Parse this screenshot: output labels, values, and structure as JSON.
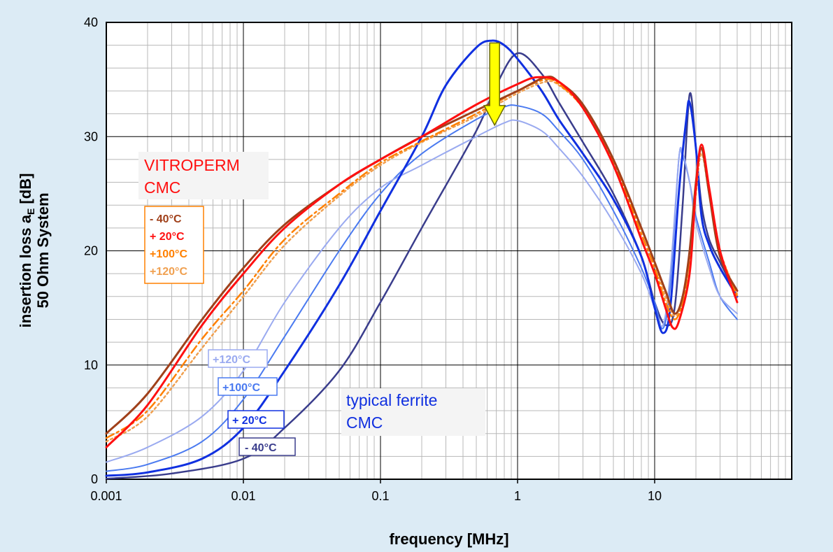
{
  "chart_data": {
    "type": "line",
    "xlabel": "frequency [MHz]",
    "ylabel_line1": "insertion loss  a",
    "ylabel_sub": "E",
    "ylabel_unit": " [dB]",
    "ylabel_line2": "50 Ohm System",
    "x_scale": "log",
    "xlim": [
      0.001,
      100
    ],
    "ylim": [
      0,
      40
    ],
    "x_ticks": [
      {
        "value": 0.001,
        "label": "0.001"
      },
      {
        "value": 0.01,
        "label": "0.01"
      },
      {
        "value": 0.1,
        "label": "0.1"
      },
      {
        "value": 1,
        "label": "1"
      },
      {
        "value": 10,
        "label": "10"
      }
    ],
    "y_ticks": [
      {
        "value": 0,
        "label": "0"
      },
      {
        "value": 10,
        "label": "10"
      },
      {
        "value": 20,
        "label": "20"
      },
      {
        "value": 30,
        "label": "30"
      },
      {
        "value": 40,
        "label": "40"
      }
    ],
    "grid": true,
    "colors": {
      "background": "#dcebf5",
      "plot_bg": "#ffffff",
      "vit_m40": "#a0401a",
      "vit_p20": "#ff1010",
      "vit_p100": "#ff8000",
      "vit_p120": "#f0a050",
      "fer_m40": "#3a3d8c",
      "fer_p20": "#1030e0",
      "fer_p100": "#4a7af0",
      "fer_p120": "#9aaaf0",
      "arrow": "#ffff00"
    },
    "series": [
      {
        "group": "VITROPERM CMC",
        "color_key": "vit_m40",
        "dash": "",
        "width": 3,
        "points": [
          [
            0.001,
            4.0
          ],
          [
            0.002,
            7.5
          ],
          [
            0.005,
            14.0
          ],
          [
            0.01,
            18.5
          ],
          [
            0.02,
            22.3
          ],
          [
            0.05,
            25.8
          ],
          [
            0.1,
            28.0
          ],
          [
            0.2,
            30.0
          ],
          [
            0.5,
            32.3
          ],
          [
            1,
            34.0
          ],
          [
            1.6,
            35.2
          ],
          [
            2,
            34.8
          ],
          [
            3,
            32.8
          ],
          [
            5,
            28.0
          ],
          [
            8,
            22.0
          ],
          [
            10,
            19.0
          ],
          [
            12,
            16.5
          ],
          [
            14,
            14.5
          ],
          [
            16,
            16.0
          ],
          [
            18,
            20.0
          ],
          [
            20,
            26.0
          ],
          [
            22,
            29.0
          ],
          [
            25,
            25.0
          ],
          [
            30,
            19.5
          ],
          [
            40,
            16.5
          ]
        ]
      },
      {
        "group": "VITROPERM CMC",
        "color_key": "vit_p20",
        "dash": "",
        "width": 3,
        "points": [
          [
            0.001,
            2.8
          ],
          [
            0.002,
            6.5
          ],
          [
            0.005,
            13.5
          ],
          [
            0.01,
            18.0
          ],
          [
            0.02,
            22.0
          ],
          [
            0.05,
            25.8
          ],
          [
            0.1,
            28.0
          ],
          [
            0.2,
            30.0
          ],
          [
            0.5,
            32.8
          ],
          [
            1,
            34.6
          ],
          [
            1.4,
            35.2
          ],
          [
            2,
            34.8
          ],
          [
            3,
            32.5
          ],
          [
            5,
            27.5
          ],
          [
            8,
            21.0
          ],
          [
            10,
            18.0
          ],
          [
            12,
            15.0
          ],
          [
            13.5,
            13.3
          ],
          [
            15,
            13.8
          ],
          [
            18,
            18.0
          ],
          [
            20,
            25.5
          ],
          [
            22,
            29.3
          ],
          [
            25,
            25.5
          ],
          [
            30,
            20.0
          ],
          [
            40,
            15.5
          ]
        ]
      },
      {
        "group": "VITROPERM CMC",
        "color_key": "vit_p100",
        "dash": "12,5,3,5",
        "width": 2.5,
        "points": [
          [
            0.001,
            3.6
          ],
          [
            0.002,
            6.0
          ],
          [
            0.005,
            12.3
          ],
          [
            0.01,
            16.5
          ],
          [
            0.02,
            21.0
          ],
          [
            0.05,
            25.0
          ],
          [
            0.1,
            27.7
          ],
          [
            0.2,
            29.6
          ],
          [
            0.5,
            32.0
          ],
          [
            1,
            34.0
          ],
          [
            1.6,
            35.0
          ],
          [
            2,
            34.6
          ],
          [
            3,
            32.5
          ],
          [
            5,
            27.8
          ],
          [
            8,
            21.5
          ],
          [
            10,
            18.5
          ],
          [
            12,
            15.5
          ],
          [
            14,
            14.0
          ],
          [
            16,
            15.5
          ],
          [
            18,
            19.5
          ],
          [
            20,
            25.5
          ],
          [
            22,
            29.0
          ],
          [
            25,
            25.0
          ],
          [
            30,
            20.0
          ],
          [
            40,
            16.0
          ]
        ]
      },
      {
        "group": "VITROPERM CMC",
        "color_key": "vit_p120",
        "dash": "3,4",
        "width": 2.5,
        "points": [
          [
            0.001,
            3.3
          ],
          [
            0.002,
            5.5
          ],
          [
            0.005,
            11.5
          ],
          [
            0.01,
            16.0
          ],
          [
            0.02,
            20.5
          ],
          [
            0.05,
            24.8
          ],
          [
            0.1,
            27.5
          ],
          [
            0.2,
            29.5
          ],
          [
            0.5,
            31.8
          ],
          [
            1,
            33.8
          ],
          [
            1.6,
            34.8
          ],
          [
            2,
            34.5
          ],
          [
            3,
            32.5
          ],
          [
            5,
            28.0
          ],
          [
            8,
            22.0
          ],
          [
            10,
            19.0
          ],
          [
            12,
            16.0
          ],
          [
            14,
            14.3
          ],
          [
            16,
            15.5
          ],
          [
            18,
            19.0
          ],
          [
            20,
            25.0
          ],
          [
            22,
            28.5
          ],
          [
            25,
            25.0
          ],
          [
            30,
            20.0
          ],
          [
            40,
            16.2
          ]
        ]
      },
      {
        "group": "typical ferrite CMC",
        "color_key": "fer_m40",
        "dash": "",
        "width": 2.5,
        "points": [
          [
            0.001,
            0.05
          ],
          [
            0.003,
            0.5
          ],
          [
            0.01,
            1.8
          ],
          [
            0.02,
            4.5
          ],
          [
            0.05,
            9.5
          ],
          [
            0.1,
            15.5
          ],
          [
            0.2,
            22.0
          ],
          [
            0.5,
            30.5
          ],
          [
            0.7,
            34.5
          ],
          [
            1,
            37.3
          ],
          [
            1.5,
            35.5
          ],
          [
            2,
            33.0
          ],
          [
            3,
            29.5
          ],
          [
            5,
            25.0
          ],
          [
            8,
            19.5
          ],
          [
            10,
            15.5
          ],
          [
            12,
            13.5
          ],
          [
            14,
            15.0
          ],
          [
            16,
            24.0
          ],
          [
            18,
            33.7
          ],
          [
            20,
            29.0
          ],
          [
            22,
            24.0
          ],
          [
            25,
            21.0
          ],
          [
            30,
            19.0
          ],
          [
            40,
            16.0
          ]
        ]
      },
      {
        "group": "typical ferrite CMC",
        "color_key": "fer_p20",
        "dash": "",
        "width": 3,
        "points": [
          [
            0.001,
            0.3
          ],
          [
            0.002,
            0.6
          ],
          [
            0.005,
            1.8
          ],
          [
            0.01,
            4.5
          ],
          [
            0.02,
            9.5
          ],
          [
            0.05,
            17.0
          ],
          [
            0.1,
            23.5
          ],
          [
            0.2,
            30.0
          ],
          [
            0.3,
            34.5
          ],
          [
            0.5,
            37.8
          ],
          [
            0.65,
            38.4
          ],
          [
            0.8,
            38.0
          ],
          [
            1,
            36.8
          ],
          [
            1.5,
            34.0
          ],
          [
            2,
            31.5
          ],
          [
            3,
            28.5
          ],
          [
            5,
            24.5
          ],
          [
            8,
            19.5
          ],
          [
            10,
            15.0
          ],
          [
            11.5,
            12.8
          ],
          [
            13,
            15.0
          ],
          [
            15,
            25.0
          ],
          [
            17,
            31.5
          ],
          [
            18,
            33.0
          ],
          [
            20,
            29.0
          ],
          [
            22,
            23.0
          ],
          [
            25,
            20.5
          ],
          [
            30,
            18.5
          ],
          [
            40,
            16.0
          ]
        ]
      },
      {
        "group": "typical ferrite CMC",
        "color_key": "fer_p100",
        "dash": "",
        "width": 2,
        "points": [
          [
            0.001,
            0.7
          ],
          [
            0.002,
            1.3
          ],
          [
            0.005,
            3.3
          ],
          [
            0.01,
            7.0
          ],
          [
            0.02,
            12.5
          ],
          [
            0.05,
            20.0
          ],
          [
            0.1,
            25.0
          ],
          [
            0.2,
            28.5
          ],
          [
            0.5,
            31.5
          ],
          [
            0.8,
            32.6
          ],
          [
            1,
            32.7
          ],
          [
            1.5,
            32.0
          ],
          [
            2,
            30.5
          ],
          [
            3,
            28.0
          ],
          [
            5,
            23.5
          ],
          [
            8,
            18.5
          ],
          [
            10,
            15.5
          ],
          [
            11.5,
            13.2
          ],
          [
            13,
            17.0
          ],
          [
            15,
            28.0
          ],
          [
            16,
            28.3
          ],
          [
            18,
            26.0
          ],
          [
            20,
            23.0
          ],
          [
            25,
            19.0
          ],
          [
            30,
            16.0
          ],
          [
            40,
            14.0
          ]
        ]
      },
      {
        "group": "typical ferrite CMC",
        "color_key": "fer_p120",
        "dash": "",
        "width": 2,
        "points": [
          [
            0.001,
            1.5
          ],
          [
            0.002,
            2.8
          ],
          [
            0.005,
            5.5
          ],
          [
            0.01,
            9.5
          ],
          [
            0.02,
            15.5
          ],
          [
            0.05,
            22.0
          ],
          [
            0.1,
            25.5
          ],
          [
            0.2,
            27.5
          ],
          [
            0.5,
            30.0
          ],
          [
            0.8,
            31.2
          ],
          [
            1,
            31.4
          ],
          [
            1.5,
            30.5
          ],
          [
            2,
            29.0
          ],
          [
            3,
            26.5
          ],
          [
            5,
            22.5
          ],
          [
            8,
            18.0
          ],
          [
            10,
            15.0
          ],
          [
            11.5,
            13.5
          ],
          [
            13,
            18.0
          ],
          [
            15,
            28.0
          ],
          [
            16,
            28.5
          ],
          [
            18,
            26.0
          ],
          [
            20,
            22.5
          ],
          [
            25,
            18.5
          ],
          [
            30,
            16.0
          ],
          [
            40,
            14.5
          ]
        ]
      }
    ],
    "annotations": {
      "vitroperm_title": [
        "VITROPERM",
        "CMC"
      ],
      "vitroperm_legend": [
        "- 40°C",
        "+ 20°C",
        "+100°C",
        "+120°C"
      ],
      "vitroperm_legend_colors": [
        "#a0401a",
        "#ff1010",
        "#ff8000",
        "#f0a050"
      ],
      "ferrite_title": [
        "typical ferrite",
        "CMC"
      ],
      "ferrite_labels": [
        {
          "text": "+120°C",
          "color_key": "fer_p120"
        },
        {
          "text": "+100°C",
          "color_key": "fer_p100"
        },
        {
          "text": "+ 20°C",
          "color_key": "fer_p20"
        },
        {
          "text": "- 40°C",
          "color_key": "fer_m40"
        }
      ],
      "arrow": {
        "x": 0.68,
        "y_from": 38.2,
        "y_to": 31.0
      }
    }
  }
}
